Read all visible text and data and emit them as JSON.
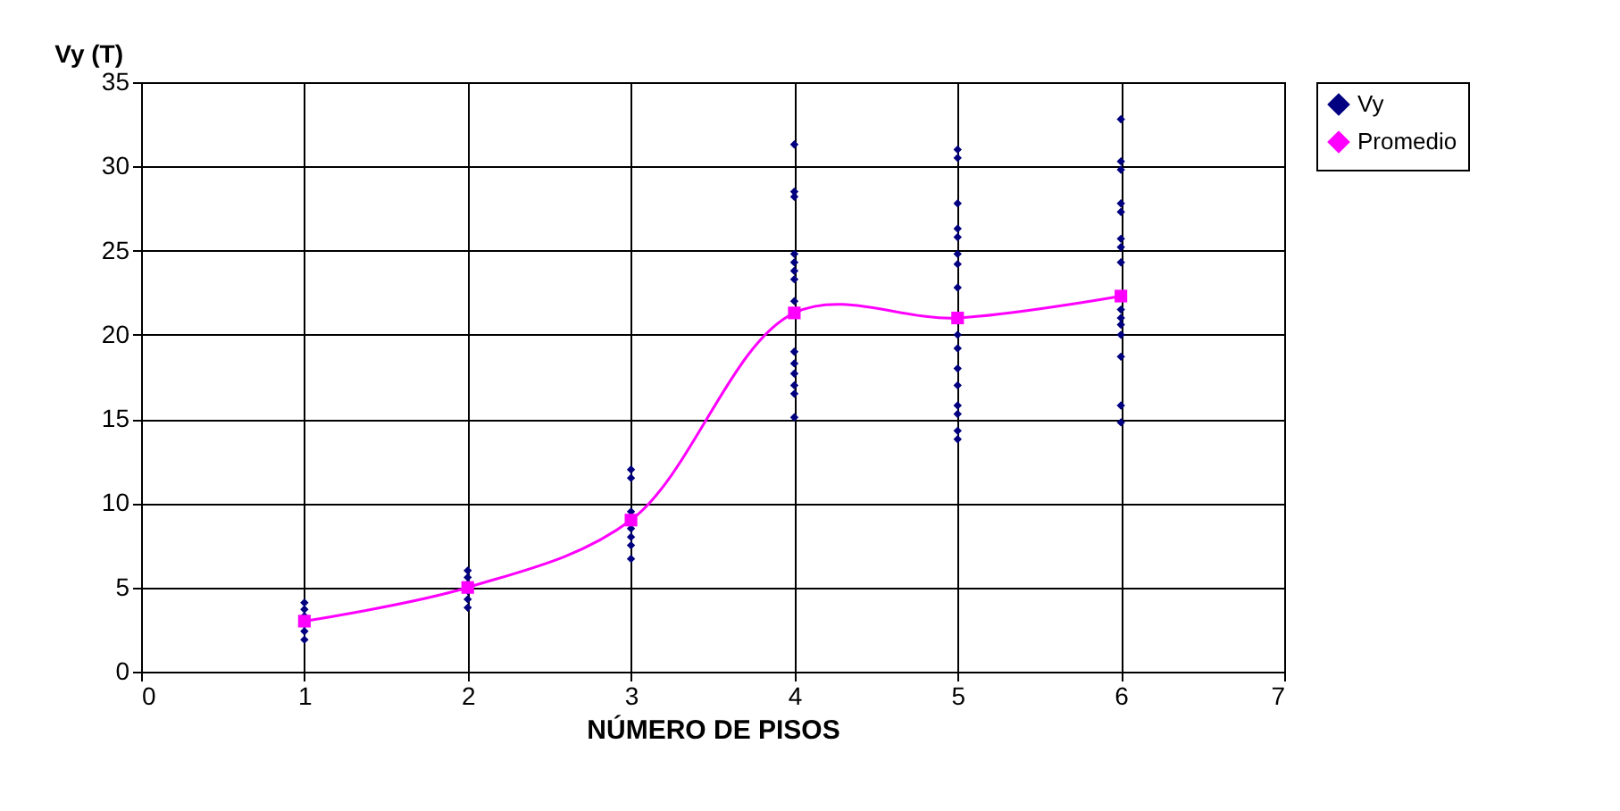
{
  "chart_data": {
    "type": "scatter",
    "xlabel": "NÚMERO DE PISOS",
    "ylabel": "Vy (T)",
    "xlim": [
      0,
      7
    ],
    "xticks": [
      0,
      1,
      2,
      3,
      4,
      5,
      6,
      7
    ],
    "ylim": [
      0,
      35
    ],
    "yticks": [
      0,
      5,
      10,
      15,
      20,
      25,
      30,
      35
    ],
    "grid": true,
    "legend": "right",
    "series": [
      {
        "name": "Vy",
        "marker": "diamond",
        "color": "#000080",
        "x": [
          1,
          1,
          1,
          1,
          1,
          1,
          2,
          2,
          2,
          2,
          2,
          2,
          3,
          3,
          3,
          3,
          3,
          3,
          3,
          4,
          4,
          4,
          4,
          4,
          4,
          4,
          4,
          4,
          4,
          4,
          4,
          4,
          4,
          5,
          5,
          5,
          5,
          5,
          5,
          5,
          5,
          5,
          5,
          5,
          5,
          5,
          5,
          5,
          5,
          6,
          6,
          6,
          6,
          6,
          6,
          6,
          6,
          6,
          6,
          6,
          6,
          6,
          6,
          6
        ],
        "values": [
          4.1,
          3.7,
          3.3,
          2.8,
          2.4,
          1.9,
          6.0,
          5.6,
          5.2,
          4.8,
          4.3,
          3.8,
          12.0,
          11.5,
          9.5,
          8.5,
          8.0,
          7.5,
          6.7,
          31.3,
          28.5,
          28.2,
          24.8,
          24.3,
          23.8,
          23.3,
          22.0,
          19.0,
          18.3,
          17.7,
          17.0,
          16.5,
          15.1,
          31.0,
          30.5,
          27.8,
          26.3,
          25.8,
          24.8,
          24.2,
          22.8,
          20.0,
          19.2,
          18.0,
          17.0,
          15.8,
          15.3,
          14.3,
          13.8,
          32.8,
          30.3,
          29.8,
          27.8,
          27.3,
          25.7,
          25.2,
          24.3,
          21.5,
          21.0,
          20.6,
          20.0,
          18.7,
          15.8,
          14.8
        ]
      },
      {
        "name": "Promedio",
        "type": "line",
        "marker": "square",
        "line_style": "solid",
        "color": "#ff00ff",
        "x": [
          1,
          2,
          3,
          4,
          5,
          6
        ],
        "values": [
          3.0,
          5.0,
          9.0,
          21.3,
          21.0,
          22.3
        ]
      }
    ]
  }
}
